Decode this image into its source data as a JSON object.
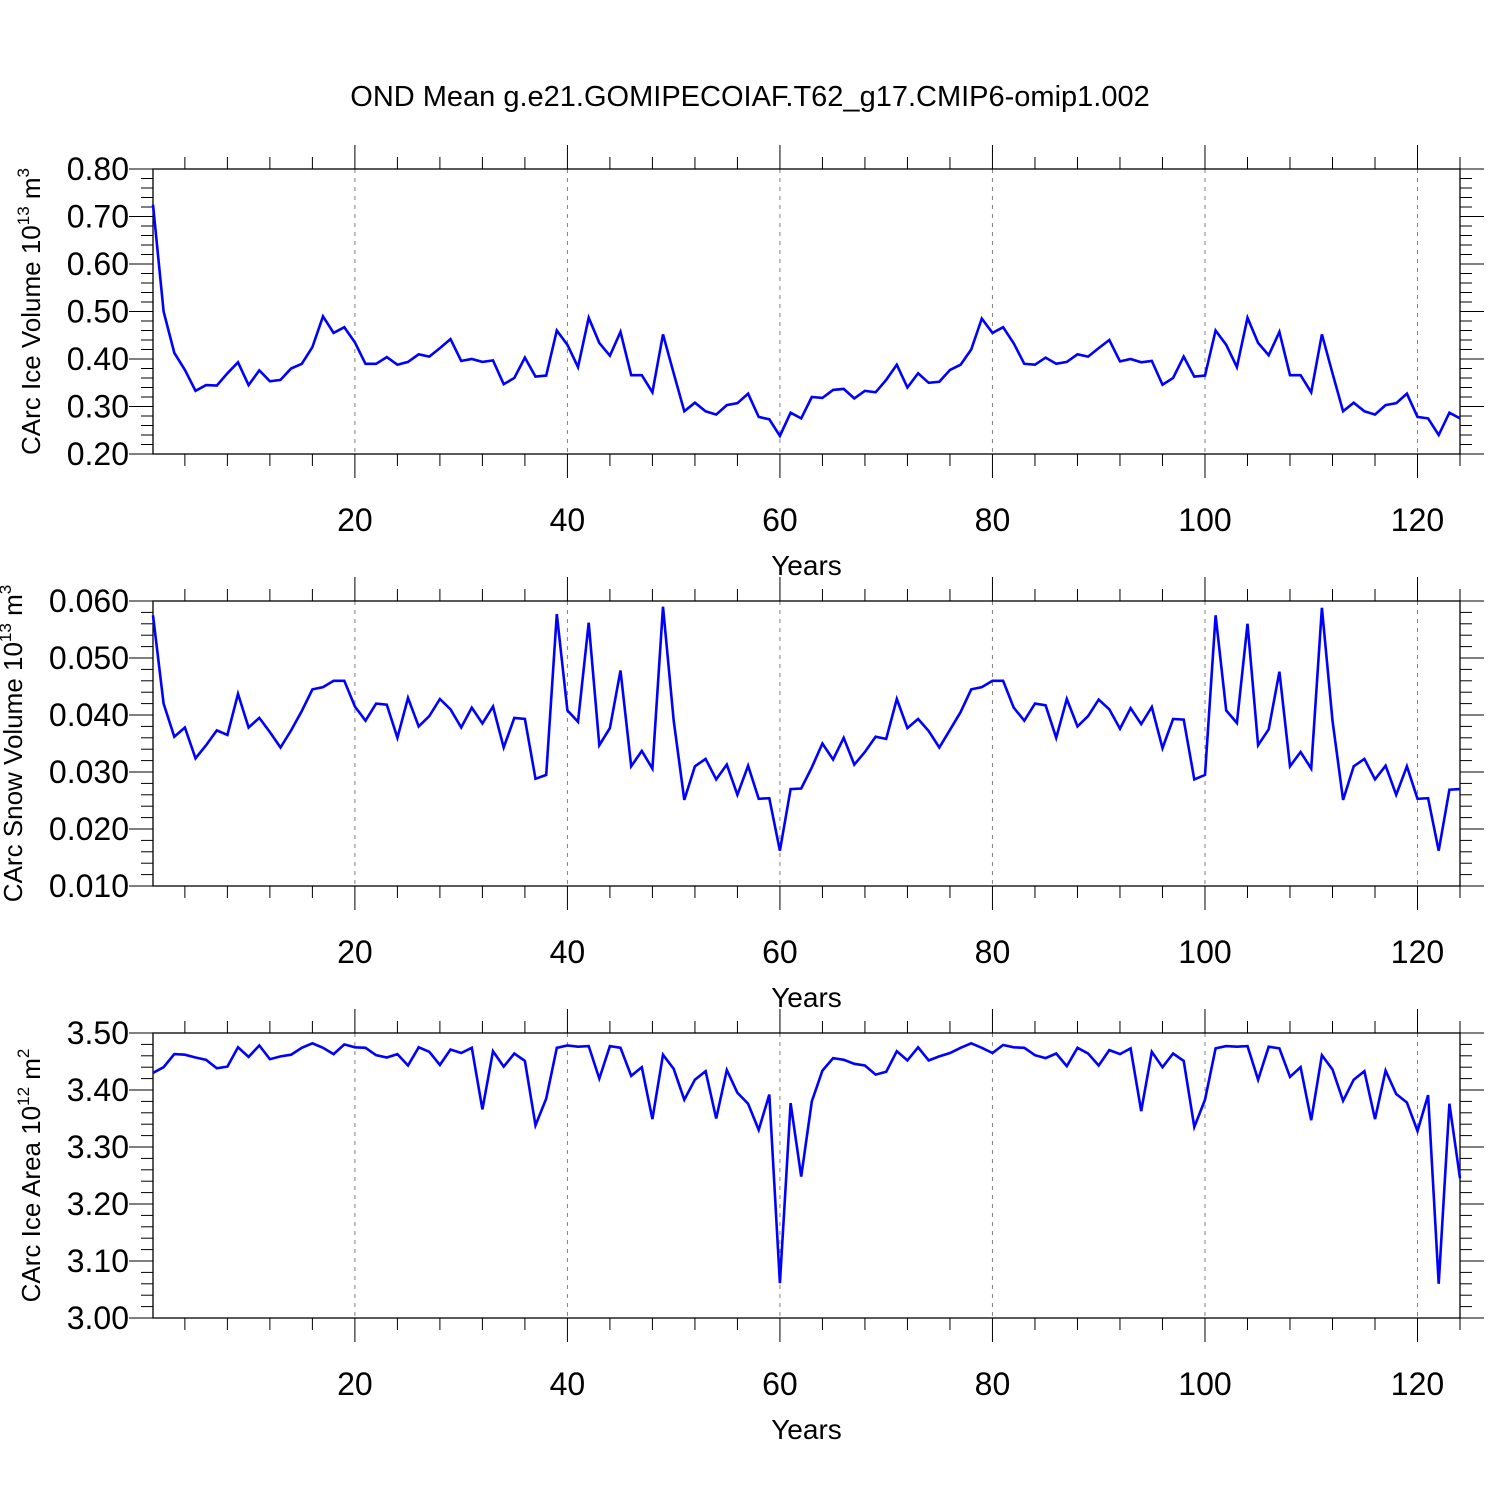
{
  "title": "OND Mean g.e21.GOMIPECOIAF.T62_g17.CMIP6-omip1.002",
  "colors": {
    "series": "#0000ff",
    "axis": "#000000",
    "grid": "#808080"
  },
  "chart_data": [
    {
      "type": "line",
      "title": "OND Mean g.e21.GOMIPECOIAF.T62_g17.CMIP6-omip1.002",
      "ylabel_base": "CArc Ice Volume 10",
      "ylabel_exp": "13",
      "ylabel_unit": " m",
      "ylabel_unit_exp": "3",
      "xlabel": "Years",
      "xlim": [
        1,
        124
      ],
      "ylim": [
        0.2,
        0.8
      ],
      "x_ticks": [
        20,
        40,
        60,
        80,
        100,
        120
      ],
      "y_ticks": [
        "0.20",
        "0.30",
        "0.40",
        "0.50",
        "0.60",
        "0.70",
        "0.80"
      ],
      "y_minor_step": 0.02,
      "x_minor_step": 4,
      "grid": "dashed vertical at major x ticks",
      "series": [
        {
          "name": "CArc Ice Volume",
          "values": [
            0.725,
            0.5,
            0.413,
            0.377,
            0.333,
            0.345,
            0.344,
            0.37,
            0.393,
            0.345,
            0.376,
            0.353,
            0.356,
            0.38,
            0.39,
            0.425,
            0.49,
            0.455,
            0.467,
            0.435,
            0.39,
            0.39,
            0.404,
            0.388,
            0.394,
            0.41,
            0.405,
            0.423,
            0.442,
            0.396,
            0.4,
            0.394,
            0.397,
            0.347,
            0.36,
            0.403,
            0.363,
            0.365,
            0.46,
            0.43,
            0.383,
            0.487,
            0.434,
            0.407,
            0.457,
            0.366,
            0.366,
            0.33,
            0.452,
            0.37,
            0.29,
            0.308,
            0.29,
            0.283,
            0.303,
            0.307,
            0.327,
            0.278,
            0.273,
            0.238,
            0.287,
            0.275,
            0.32,
            0.318,
            0.335,
            0.337,
            0.317,
            0.333,
            0.33,
            0.356,
            0.388,
            0.34,
            0.37,
            0.35,
            0.352,
            0.377,
            0.388,
            0.42,
            0.485,
            0.455,
            0.467,
            0.433,
            0.39,
            0.388,
            0.403,
            0.39,
            0.394,
            0.41,
            0.405,
            0.423,
            0.44,
            0.395,
            0.4,
            0.393,
            0.396,
            0.346,
            0.36,
            0.405,
            0.363,
            0.365,
            0.46,
            0.43,
            0.383,
            0.487,
            0.434,
            0.408,
            0.457,
            0.366,
            0.366,
            0.33,
            0.452,
            0.37,
            0.29,
            0.308,
            0.29,
            0.283,
            0.303,
            0.307,
            0.327,
            0.278,
            0.275,
            0.24,
            0.287,
            0.275
          ]
        }
      ]
    },
    {
      "type": "line",
      "ylabel_base": "CArc Snow Volume 10",
      "ylabel_exp": "13",
      "ylabel_unit": " m",
      "ylabel_unit_exp": "3",
      "xlabel": "Years",
      "xlim": [
        1,
        124
      ],
      "ylim": [
        0.01,
        0.06
      ],
      "x_ticks": [
        20,
        40,
        60,
        80,
        100,
        120
      ],
      "y_ticks": [
        "0.010",
        "0.020",
        "0.030",
        "0.040",
        "0.050",
        "0.060"
      ],
      "y_minor_step": 0.002,
      "x_minor_step": 4,
      "grid": "dashed vertical at major x ticks",
      "series": [
        {
          "name": "CArc Snow Volume",
          "values": [
            0.0575,
            0.042,
            0.0362,
            0.0378,
            0.0324,
            0.0347,
            0.0373,
            0.0365,
            0.0437,
            0.0378,
            0.0395,
            0.037,
            0.0343,
            0.0373,
            0.0407,
            0.0445,
            0.0449,
            0.046,
            0.046,
            0.0415,
            0.039,
            0.042,
            0.0418,
            0.036,
            0.043,
            0.038,
            0.0398,
            0.0428,
            0.041,
            0.0378,
            0.0413,
            0.0385,
            0.0415,
            0.0343,
            0.0395,
            0.0393,
            0.0288,
            0.0295,
            0.0577,
            0.0408,
            0.0388,
            0.0562,
            0.0347,
            0.0377,
            0.0478,
            0.031,
            0.0337,
            0.0306,
            0.059,
            0.039,
            0.0251,
            0.031,
            0.0323,
            0.0287,
            0.0313,
            0.026,
            0.0311,
            0.0253,
            0.0254,
            0.0162,
            0.027,
            0.0271,
            0.0308,
            0.035,
            0.0322,
            0.036,
            0.0313,
            0.0335,
            0.0362,
            0.0358,
            0.0428,
            0.0377,
            0.0393,
            0.0372,
            0.0343,
            0.0374,
            0.0405,
            0.0445,
            0.0449,
            0.046,
            0.046,
            0.0413,
            0.039,
            0.042,
            0.0417,
            0.036,
            0.0428,
            0.038,
            0.0398,
            0.0427,
            0.041,
            0.0376,
            0.0412,
            0.0384,
            0.0414,
            0.0342,
            0.0393,
            0.0392,
            0.0287,
            0.0295,
            0.0575,
            0.0408,
            0.0386,
            0.056,
            0.0347,
            0.0375,
            0.0476,
            0.031,
            0.0335,
            0.0306,
            0.0588,
            0.039,
            0.0251,
            0.031,
            0.0323,
            0.0287,
            0.0311,
            0.026,
            0.031,
            0.0253,
            0.0254,
            0.0162,
            0.0269,
            0.027
          ]
        }
      ]
    },
    {
      "type": "line",
      "ylabel_base": "CArc Ice Area 10",
      "ylabel_exp": "12",
      "ylabel_unit": " m",
      "ylabel_unit_exp": "2",
      "xlabel": "Years",
      "xlim": [
        1,
        124
      ],
      "ylim": [
        3.0,
        3.5
      ],
      "x_ticks": [
        20,
        40,
        60,
        80,
        100,
        120
      ],
      "y_ticks": [
        "3.00",
        "3.10",
        "3.20",
        "3.30",
        "3.40",
        "3.50"
      ],
      "y_minor_step": 0.02,
      "x_minor_step": 4,
      "grid": "dashed vertical at major x ticks",
      "series": [
        {
          "name": "CArc Ice Area",
          "values": [
            3.43,
            3.44,
            3.463,
            3.462,
            3.457,
            3.453,
            3.438,
            3.441,
            3.475,
            3.458,
            3.478,
            3.454,
            3.459,
            3.462,
            3.474,
            3.482,
            3.474,
            3.463,
            3.48,
            3.475,
            3.474,
            3.461,
            3.457,
            3.463,
            3.443,
            3.475,
            3.467,
            3.444,
            3.471,
            3.465,
            3.474,
            3.366,
            3.468,
            3.441,
            3.464,
            3.451,
            3.338,
            3.385,
            3.474,
            3.478,
            3.476,
            3.477,
            3.42,
            3.477,
            3.474,
            3.425,
            3.44,
            3.349,
            3.462,
            3.437,
            3.383,
            3.418,
            3.433,
            3.35,
            3.435,
            3.395,
            3.376,
            3.33,
            3.392,
            3.061,
            3.377,
            3.248,
            3.38,
            3.434,
            3.456,
            3.453,
            3.446,
            3.443,
            3.427,
            3.432,
            3.468,
            3.452,
            3.475,
            3.452,
            3.459,
            3.465,
            3.474,
            3.482,
            3.474,
            3.465,
            3.479,
            3.475,
            3.474,
            3.461,
            3.456,
            3.464,
            3.442,
            3.474,
            3.464,
            3.443,
            3.47,
            3.463,
            3.473,
            3.363,
            3.467,
            3.44,
            3.464,
            3.451,
            3.335,
            3.383,
            3.473,
            3.477,
            3.476,
            3.477,
            3.418,
            3.476,
            3.473,
            3.423,
            3.44,
            3.347,
            3.461,
            3.436,
            3.381,
            3.418,
            3.433,
            3.349,
            3.434,
            3.393,
            3.378,
            3.328,
            3.391,
            3.06,
            3.376,
            3.245
          ]
        }
      ]
    }
  ]
}
